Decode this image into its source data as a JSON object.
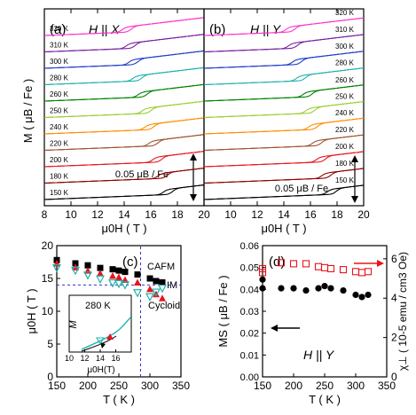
{
  "chart_data": [
    {
      "panel": "(a)",
      "type": "line",
      "title": "H || X",
      "xlabel": "μ0H ( T )",
      "ylabel": "M ( μB / Fe )",
      "xlim": [
        8,
        20
      ],
      "x_ticks": [
        "8",
        "10",
        "12",
        "14",
        "16",
        "18",
        "20"
      ],
      "scale_label": "0.05 μB / Fe",
      "series": [
        {
          "name": "150 K",
          "color": "#000000",
          "transition": 17.3
        },
        {
          "name": "180 K",
          "color": "#8b0000",
          "transition": 16.9
        },
        {
          "name": "200 K",
          "color": "#e8141c",
          "transition": 16.5
        },
        {
          "name": "220 K",
          "color": "#a0522d",
          "transition": 16.2
        },
        {
          "name": "240 K",
          "color": "#ff8c00",
          "transition": 15.9
        },
        {
          "name": "250 K",
          "color": "#9acd32",
          "transition": 15.7
        },
        {
          "name": "260 K",
          "color": "#008000",
          "transition": 15.4
        },
        {
          "name": "280 K",
          "color": "#20b2aa",
          "transition": 15.0
        },
        {
          "name": "300 K",
          "color": "#1e3cc8",
          "transition": 14.7
        },
        {
          "name": "310 K",
          "color": "#7a1fa0",
          "transition": 14.5
        },
        {
          "name": "320 K",
          "color": "#ff33cc",
          "transition": 14.2
        }
      ]
    },
    {
      "panel": "(b)",
      "type": "line",
      "title": "H || Y",
      "xlabel": "μ0H ( T )",
      "xlim": [
        8,
        20
      ],
      "x_ticks": [
        "10",
        "12",
        "14",
        "16",
        "18",
        "20"
      ],
      "scale_label": "0.05 μB / Fe",
      "series": [
        {
          "name": "150 K",
          "color": "#000000",
          "transition": 17.6
        },
        {
          "name": "180 K",
          "color": "#8b0000",
          "transition": 17.2
        },
        {
          "name": "200 K",
          "color": "#e8141c",
          "transition": 16.8
        },
        {
          "name": "220 K",
          "color": "#a0522d",
          "transition": 16.5
        },
        {
          "name": "240 K",
          "color": "#ff8c00",
          "transition": 16.2
        },
        {
          "name": "250 K",
          "color": "#9acd32",
          "transition": 16.0
        },
        {
          "name": "260 K",
          "color": "#008000",
          "transition": 15.8
        },
        {
          "name": "280 K",
          "color": "#20b2aa",
          "transition": 15.3
        },
        {
          "name": "300 K",
          "color": "#1e3cc8",
          "transition": 15.0
        },
        {
          "name": "310 K",
          "color": "#7a1fa0",
          "transition": 14.7
        },
        {
          "name": "320 K",
          "color": "#ff33cc",
          "transition": 14.5
        }
      ]
    },
    {
      "panel": "(c)",
      "type": "scatter",
      "xlabel": "T ( K )",
      "ylabel": "μ0H ( T )",
      "xlim": [
        150,
        350
      ],
      "ylim": [
        0,
        20
      ],
      "x_ticks": [
        "150",
        "200",
        "250",
        "300",
        "350"
      ],
      "y_ticks": [
        "0",
        "5",
        "10",
        "15",
        "20"
      ],
      "annotations": [
        "CAFM",
        "IM",
        "Cycloid"
      ],
      "guide_h": 14,
      "guide_v": 285,
      "series": [
        {
          "marker": "square",
          "color": "#000000",
          "x": [
            150,
            180,
            200,
            220,
            240,
            250,
            260,
            280,
            300,
            310,
            320
          ],
          "y": [
            17.8,
            17.3,
            17.0,
            16.6,
            16.4,
            16.2,
            16.0,
            15.6,
            15.0,
            14.6,
            14.4
          ]
        },
        {
          "marker": "triangle-up",
          "color": "#e8141c",
          "x": [
            150,
            180,
            200,
            220,
            240,
            250,
            260,
            280,
            300,
            310,
            320
          ],
          "y": [
            17.3,
            16.7,
            16.2,
            15.8,
            15.4,
            15.2,
            14.8,
            14.4,
            13.4,
            12.6,
            12.0
          ]
        },
        {
          "marker": "triangle-down-open",
          "color": "#20b2aa",
          "x": [
            150,
            180,
            200,
            220,
            240,
            250,
            260,
            280,
            300,
            310,
            320
          ],
          "y": [
            16.6,
            16.2,
            15.5,
            14.9,
            14.3,
            14.2,
            14.0,
            12.8,
            12.2,
            12.9,
            13.5
          ]
        }
      ],
      "inset": {
        "label": "280 K",
        "xlabel": "μ0H(T)",
        "ylabel": "M",
        "xlim": [
          10,
          18
        ],
        "x_ticks": [
          "10",
          "12",
          "14",
          "16"
        ]
      }
    },
    {
      "panel": "(d)",
      "type": "scatter",
      "title": "H || Y",
      "xlabel": "T ( K )",
      "ylabel": "MS ( μB / Fe )",
      "y2label": "χ⊥ ( 10-5 emu / cm3 Oe)",
      "xlim": [
        150,
        350
      ],
      "ylim": [
        0,
        0.06
      ],
      "y2lim": [
        0,
        6.67
      ],
      "x_ticks": [
        "150",
        "200",
        "250",
        "300",
        "350"
      ],
      "y_ticks": [
        "0.00",
        "0.01",
        "0.02",
        "0.03",
        "0.04",
        "0.05",
        "0.06"
      ],
      "y2_ticks": [
        "0",
        "2",
        "4",
        "6"
      ],
      "series": [
        {
          "marker": "circle",
          "color": "#000000",
          "axis": "left",
          "x": [
            150,
            150,
            180,
            200,
            220,
            240,
            250,
            260,
            280,
            300,
            310,
            320
          ],
          "y": [
            0.0405,
            0.0445,
            0.0405,
            0.0405,
            0.0395,
            0.0405,
            0.0415,
            0.0405,
            0.0395,
            0.0375,
            0.0365,
            0.0375
          ]
        },
        {
          "marker": "square-open",
          "color": "#e8141c",
          "axis": "right",
          "x": [
            150,
            150,
            180,
            200,
            220,
            240,
            250,
            260,
            280,
            300,
            310,
            320
          ],
          "y": [
            5.5,
            5.3,
            5.8,
            5.75,
            5.75,
            5.6,
            5.55,
            5.5,
            5.45,
            5.35,
            5.3,
            5.35
          ]
        }
      ]
    }
  ]
}
